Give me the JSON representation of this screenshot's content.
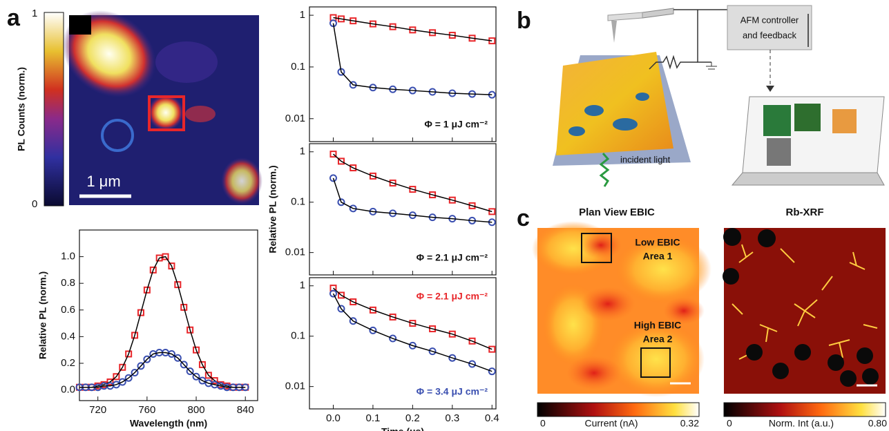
{
  "panel_labels": [
    "a",
    "b",
    "c"
  ],
  "pl_map": {
    "colorbar_label": "PL Counts (norm.)",
    "colorbar_ticks": [
      "1",
      "0"
    ],
    "scale_bar": "1 μm"
  },
  "chart_data": [
    {
      "type": "line",
      "x_label": "Wavelength (nm)",
      "y_label": "Relative PL (norm.)",
      "x": [
        705,
        710,
        715,
        720,
        725,
        730,
        735,
        740,
        745,
        750,
        755,
        760,
        765,
        770,
        775,
        780,
        785,
        790,
        795,
        800,
        805,
        810,
        815,
        820,
        825,
        830,
        835,
        840
      ],
      "series": [
        {
          "color": "#e8262a",
          "marker": "square",
          "fit_color": "#000000",
          "values": [
            0.02,
            0.02,
            0.02,
            0.03,
            0.04,
            0.06,
            0.1,
            0.17,
            0.27,
            0.41,
            0.58,
            0.75,
            0.9,
            0.99,
            1.0,
            0.93,
            0.79,
            0.62,
            0.45,
            0.3,
            0.19,
            0.11,
            0.07,
            0.04,
            0.03,
            0.02,
            0.02,
            0.02
          ]
        },
        {
          "color": "#3a4fb0",
          "marker": "circle",
          "fit_color": "#000000",
          "values": [
            0.02,
            0.02,
            0.02,
            0.02,
            0.03,
            0.03,
            0.04,
            0.06,
            0.09,
            0.13,
            0.18,
            0.23,
            0.27,
            0.28,
            0.28,
            0.27,
            0.24,
            0.19,
            0.14,
            0.1,
            0.07,
            0.05,
            0.04,
            0.03,
            0.02,
            0.02,
            0.02,
            0.02
          ]
        }
      ],
      "xlim": [
        705,
        850
      ],
      "ylim": [
        -0.08,
        1.2
      ],
      "xticks": [
        720,
        760,
        800,
        840
      ],
      "yticks": [
        {
          "value": 0,
          "label": "0.0"
        },
        0.2,
        0.4,
        0.6,
        0.8,
        {
          "value": 1,
          "label": "1.0"
        }
      ]
    },
    {
      "type": "scatter",
      "y_scale": "log",
      "xtick_labels": false,
      "x": [
        0,
        0.02,
        0.05,
        0.1,
        0.15,
        0.2,
        0.25,
        0.3,
        0.35,
        0.4
      ],
      "series": [
        {
          "color": "#e8262a",
          "marker": "square",
          "fit_color": "#000000",
          "values": [
            0.9,
            0.85,
            0.78,
            0.68,
            0.6,
            0.52,
            0.46,
            0.41,
            0.36,
            0.32
          ]
        },
        {
          "color": "#3a4fb0",
          "marker": "circle",
          "fit_color": "#000000",
          "values": [
            0.7,
            0.08,
            0.045,
            0.04,
            0.037,
            0.035,
            0.033,
            0.031,
            0.03,
            0.029
          ]
        }
      ],
      "annotations": [
        {
          "text": "Φ = 1 μJ cm⁻²",
          "color": "#111111"
        }
      ],
      "xlim": [
        -0.06,
        0.41
      ],
      "ylim": [
        0.0036,
        1.45
      ],
      "xticks": [
        0,
        0.1,
        0.2,
        0.3,
        0.4
      ],
      "yticks": [
        1,
        0.1,
        0.01
      ]
    },
    {
      "type": "scatter",
      "y_scale": "log",
      "xtick_labels": false,
      "y_label": "Relative PL (norm.)",
      "x": [
        0,
        0.02,
        0.05,
        0.1,
        0.15,
        0.2,
        0.25,
        0.3,
        0.35,
        0.4
      ],
      "series": [
        {
          "color": "#e8262a",
          "marker": "square",
          "fit_color": "#000000",
          "values": [
            0.9,
            0.65,
            0.48,
            0.33,
            0.24,
            0.18,
            0.14,
            0.11,
            0.085,
            0.065
          ]
        },
        {
          "color": "#3a4fb0",
          "marker": "circle",
          "fit_color": "#000000",
          "values": [
            0.3,
            0.1,
            0.075,
            0.065,
            0.06,
            0.055,
            0.05,
            0.047,
            0.043,
            0.04
          ]
        }
      ],
      "annotations": [
        {
          "text": "Φ = 2.1 μJ cm⁻²",
          "color": "#111111"
        }
      ],
      "xlim": [
        -0.06,
        0.41
      ],
      "ylim": [
        0.0036,
        1.45
      ],
      "xticks": [
        0,
        0.1,
        0.2,
        0.3,
        0.4
      ],
      "yticks": [
        1,
        0.1,
        0.01
      ]
    },
    {
      "type": "scatter",
      "y_scale": "log",
      "x_label": "Time (μs)",
      "x": [
        0,
        0.02,
        0.05,
        0.1,
        0.15,
        0.2,
        0.25,
        0.3,
        0.35,
        0.4
      ],
      "series": [
        {
          "color": "#e8262a",
          "marker": "square",
          "fit_color": "#000000",
          "values": [
            0.9,
            0.65,
            0.48,
            0.33,
            0.24,
            0.18,
            0.14,
            0.11,
            0.08,
            0.055
          ]
        },
        {
          "color": "#3a4fb0",
          "marker": "circle",
          "fit_color": "#000000",
          "values": [
            0.7,
            0.35,
            0.2,
            0.13,
            0.09,
            0.065,
            0.05,
            0.037,
            0.028,
            0.02
          ]
        }
      ],
      "annotations": [
        {
          "text": "Φ = 2.1 μJ cm⁻²",
          "color": "#e8262a"
        },
        {
          "text": "Φ = 3.4 μJ cm⁻²",
          "color": "#3a4fb0"
        }
      ],
      "xlim": [
        -0.06,
        0.41
      ],
      "ylim": [
        0.0036,
        1.45
      ],
      "xticks": [
        {
          "value": 0,
          "label": "0.0"
        },
        0.1,
        0.2,
        0.3,
        0.4
      ],
      "yticks": [
        1,
        0.1,
        0.01
      ]
    }
  ],
  "afm": {
    "controller": [
      "AFM controller",
      "and feedback"
    ],
    "light": "incident light"
  },
  "ebic": {
    "title": "Plan View EBIC",
    "low": [
      "Low EBIC",
      "Area 1"
    ],
    "high": [
      "High EBIC",
      "Area 2"
    ],
    "colorbar": [
      "0",
      "Current (nA)",
      "0.32"
    ]
  },
  "xrf": {
    "title": "Rb-XRF",
    "colorbar": [
      "0",
      "Norm. Int (a.u.)",
      "0.80"
    ]
  }
}
